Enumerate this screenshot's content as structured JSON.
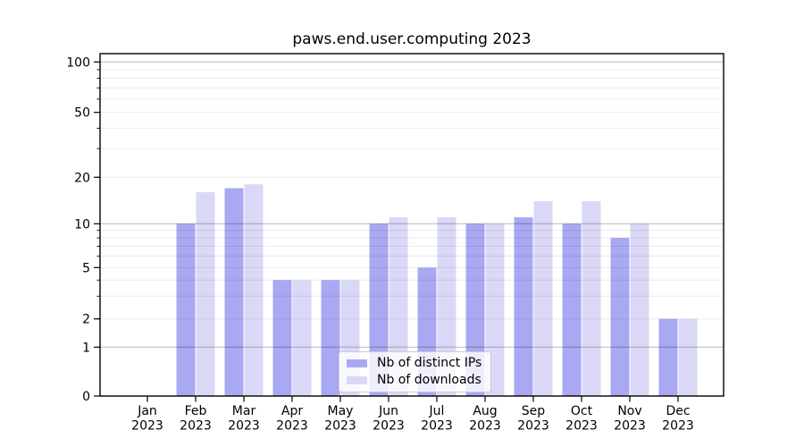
{
  "title": "paws.end.user.computing 2023",
  "chart_data": {
    "type": "bar",
    "title": "paws.end.user.computing 2023",
    "categories": [
      "Jan 2023",
      "Feb 2023",
      "Mar 2023",
      "Apr 2023",
      "May 2023",
      "Jun 2023",
      "Jul 2023",
      "Aug 2023",
      "Sep 2023",
      "Oct 2023",
      "Nov 2023",
      "Dec 2023"
    ],
    "series": [
      {
        "name": "Nb of distinct IPs",
        "color": "#a8a8f3",
        "values": [
          0,
          10,
          17,
          4,
          4,
          10,
          5,
          10,
          11,
          10,
          8,
          2
        ]
      },
      {
        "name": "Nb of downloads",
        "color": "#d9d9f7",
        "values": [
          0,
          16,
          18,
          4,
          4,
          11,
          11,
          10,
          14,
          14,
          10,
          2
        ]
      }
    ],
    "xlabel": "",
    "ylabel": "",
    "yscale": "symlog",
    "y_ticks": [
      0,
      1,
      2,
      5,
      10,
      20,
      50,
      100
    ],
    "ylim": [
      0,
      120
    ],
    "grid": true,
    "legend": {
      "position": "lower center",
      "entries": [
        "Nb of distinct IPs",
        "Nb of downloads"
      ]
    }
  }
}
